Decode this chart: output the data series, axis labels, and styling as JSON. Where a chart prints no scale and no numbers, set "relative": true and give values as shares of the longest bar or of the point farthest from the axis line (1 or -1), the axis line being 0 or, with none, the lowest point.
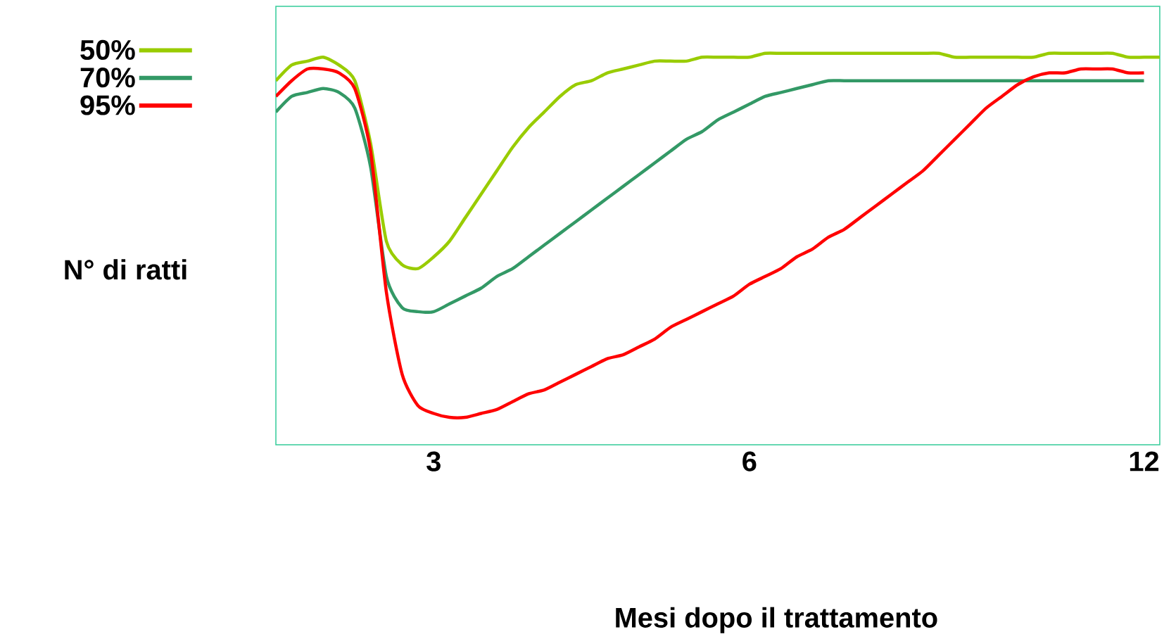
{
  "chart_data": {
    "type": "line",
    "relative": true,
    "xlabel": "Mesi dopo il trattamento",
    "ylabel": "N° di ratti",
    "legend": "left",
    "categories": [
      null,
      null,
      null,
      null,
      null,
      null,
      null,
      null,
      null,
      null,
      "3",
      null,
      null,
      null,
      null,
      null,
      null,
      null,
      null,
      null,
      null,
      null,
      null,
      null,
      null,
      null,
      null,
      null,
      null,
      null,
      "6",
      null,
      null,
      null,
      null,
      null,
      null,
      null,
      null,
      null,
      null,
      null,
      null,
      null,
      null,
      null,
      null,
      null,
      null,
      null,
      null,
      null,
      null,
      null,
      null,
      "12",
      null
    ],
    "series": [
      {
        "name": "50%",
        "color": "#99cc00",
        "values": [
          0.93,
          0.97,
          0.98,
          0.99,
          0.97,
          0.93,
          0.77,
          0.52,
          0.46,
          0.45,
          0.48,
          0.52,
          0.58,
          0.64,
          0.7,
          0.76,
          0.81,
          0.85,
          0.89,
          0.92,
          0.93,
          0.95,
          0.96,
          0.97,
          0.98,
          0.98,
          0.98,
          0.99,
          0.99,
          0.99,
          0.99,
          1,
          1,
          1,
          1,
          1,
          1,
          1,
          1,
          1,
          1,
          1,
          1,
          0.99,
          0.99,
          0.99,
          0.99,
          0.99,
          0.99,
          1,
          1,
          1,
          1,
          1,
          0.99,
          0.99,
          0.99
        ]
      },
      {
        "name": "70%",
        "color": "#339966",
        "values": [
          0.85,
          0.89,
          0.9,
          0.91,
          0.9,
          0.86,
          0.71,
          0.43,
          0.35,
          0.34,
          0.34,
          0.36,
          0.38,
          0.4,
          0.43,
          0.45,
          0.48,
          0.51,
          0.54,
          0.57,
          0.6,
          0.63,
          0.66,
          0.69,
          0.72,
          0.75,
          0.78,
          0.8,
          0.83,
          0.85,
          0.87,
          0.89,
          0.9,
          0.91,
          0.92,
          0.93,
          0.93,
          0.93,
          0.93,
          0.93,
          0.93,
          0.93,
          0.93,
          0.93,
          0.93,
          0.93,
          0.93,
          0.93,
          0.93,
          0.93,
          0.93,
          0.93,
          0.93,
          0.93,
          0.93,
          0.93,
          null
        ]
      },
      {
        "name": "95%",
        "color": "#ff0000",
        "values": [
          0.89,
          0.93,
          0.96,
          0.96,
          0.95,
          0.91,
          0.75,
          0.39,
          0.18,
          0.1,
          0.08,
          0.07,
          0.07,
          0.08,
          0.09,
          0.11,
          0.13,
          0.14,
          0.16,
          0.18,
          0.2,
          0.22,
          0.23,
          0.25,
          0.27,
          0.3,
          0.32,
          0.34,
          0.36,
          0.38,
          0.41,
          0.43,
          0.45,
          0.48,
          0.5,
          0.53,
          0.55,
          0.58,
          0.61,
          0.64,
          0.67,
          0.7,
          0.74,
          0.78,
          0.82,
          0.86,
          0.89,
          0.92,
          0.94,
          0.95,
          0.95,
          0.96,
          0.96,
          0.96,
          0.95,
          0.95,
          null
        ]
      }
    ]
  }
}
